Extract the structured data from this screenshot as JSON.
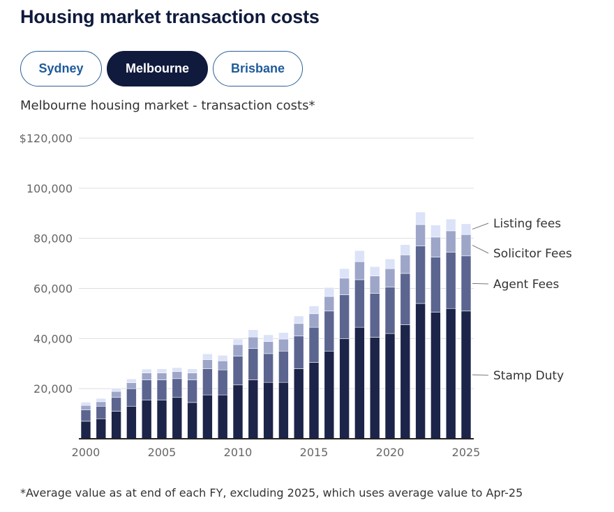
{
  "title": "Housing market transaction costs",
  "tabs": [
    {
      "label": "Sydney",
      "active": false
    },
    {
      "label": "Melbourne",
      "active": true
    },
    {
      "label": "Brisbane",
      "active": false
    }
  ],
  "colors": {
    "stamp_duty": "#1c2449",
    "agent_fees": "#5b6590",
    "solicitor_fees": "#9da6c8",
    "listing_fees": "#dce3f8",
    "tab_active_bg": "#0f1a3d",
    "tab_border": "#2c5f97",
    "title": "#0f1a3d"
  },
  "chart_data": {
    "type": "bar",
    "stacked": true,
    "title": "Melbourne housing market - transaction costs*",
    "xlabel": "",
    "ylabel": "",
    "ylim": [
      0,
      120000
    ],
    "yticks": [
      {
        "value": 20000,
        "label": "20,000"
      },
      {
        "value": 40000,
        "label": "40,000"
      },
      {
        "value": 60000,
        "label": "60,000"
      },
      {
        "value": 80000,
        "label": "80,000"
      },
      {
        "value": 100000,
        "label": "100,000"
      },
      {
        "value": 120000,
        "label": "$120,000"
      }
    ],
    "xticks": [
      "2000",
      "2005",
      "2010",
      "2015",
      "2020",
      "2025"
    ],
    "grid": true,
    "legend_placement": "right, inline labels",
    "categories": [
      "2000",
      "2001",
      "2002",
      "2003",
      "2004",
      "2005",
      "2006",
      "2007",
      "2008",
      "2009",
      "2010",
      "2011",
      "2012",
      "2013",
      "2014",
      "2015",
      "2016",
      "2017",
      "2018",
      "2019",
      "2020",
      "2021",
      "2022",
      "2023",
      "2024",
      "2025"
    ],
    "series": [
      {
        "name": "Stamp Duty",
        "values": [
          7000,
          8000,
          11000,
          13000,
          15500,
          15500,
          16500,
          14500,
          17500,
          17500,
          21500,
          23500,
          22500,
          22500,
          28000,
          30500,
          35000,
          40000,
          44500,
          40500,
          42000,
          45500,
          54000,
          50500,
          52000,
          51000
        ]
      },
      {
        "name": "Agent Fees",
        "values": [
          4500,
          5000,
          5500,
          7000,
          8000,
          8000,
          7500,
          9000,
          10500,
          10000,
          11500,
          12500,
          11500,
          12500,
          13000,
          14000,
          16000,
          17500,
          19000,
          17500,
          18500,
          20500,
          23000,
          22000,
          22500,
          22000
        ]
      },
      {
        "name": "Solicitor Fees",
        "values": [
          1800,
          1800,
          2400,
          2400,
          2800,
          2800,
          2800,
          2800,
          3600,
          3600,
          4600,
          4600,
          4800,
          4800,
          5000,
          5400,
          5800,
          6600,
          7200,
          7000,
          7400,
          7400,
          8500,
          8000,
          8500,
          8500
        ]
      },
      {
        "name": "Listing fees",
        "values": [
          1300,
          1300,
          1300,
          1500,
          1500,
          1600,
          1600,
          1600,
          2300,
          2200,
          2200,
          2900,
          2700,
          2600,
          3000,
          3100,
          3600,
          3800,
          4400,
          3700,
          3900,
          4100,
          5000,
          4800,
          4700,
          4300
        ]
      }
    ]
  },
  "footnote": "*Average value as at end of each FY, excluding 2025, which uses average value to Apr-25"
}
